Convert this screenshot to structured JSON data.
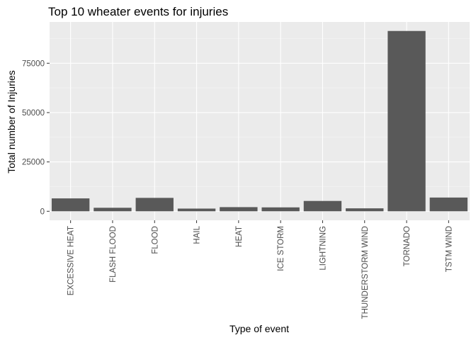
{
  "chart_data": {
    "type": "bar",
    "title": "Top 10 wheater events for injuries",
    "xlabel": "Type of event",
    "ylabel": "Total number of Injuries",
    "categories": [
      "EXCESSIVE HEAT",
      "FLASH FLOOD",
      "FLOOD",
      "HAIL",
      "HEAT",
      "ICE STORM",
      "LIGHTNING",
      "THUNDERSTORM WIND",
      "TORNADO",
      "TSTM WIND"
    ],
    "values": [
      6525,
      1777,
      6789,
      1361,
      2100,
      1975,
      5230,
      1488,
      91346,
      6957
    ],
    "y_ticks": [
      0,
      25000,
      50000,
      75000
    ],
    "y_tick_labels": [
      "0",
      "25000",
      "50000",
      "75000"
    ],
    "ylim": [
      -4567,
      95913
    ],
    "grid": true,
    "colors": {
      "panel": "#ebebeb",
      "grid_major": "#ffffff",
      "grid_minor": "#f5f5f5",
      "bar": "#595959",
      "tick": "#333333"
    }
  }
}
